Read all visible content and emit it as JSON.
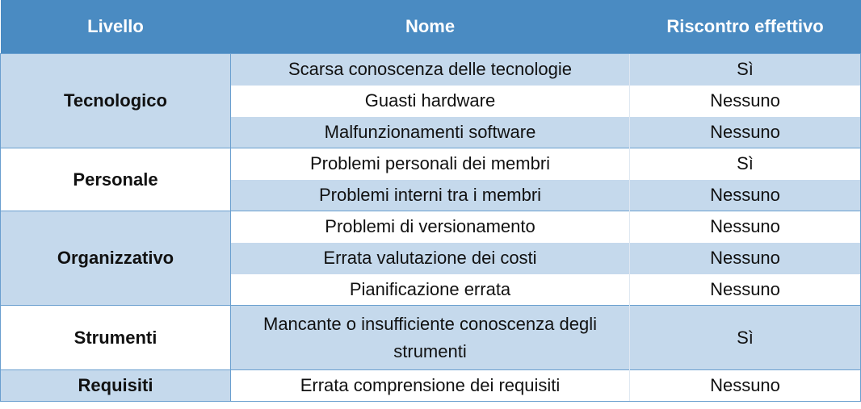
{
  "headers": {
    "level": "Livello",
    "name": "Nome",
    "result": "Riscontro effettivo"
  },
  "groups": [
    {
      "level": "Tecnologico",
      "rows": [
        {
          "name": "Scarsa conoscenza delle tecnologie",
          "result": "Sì"
        },
        {
          "name": "Guasti hardware",
          "result": "Nessuno"
        },
        {
          "name": "Malfunzionamenti software",
          "result": "Nessuno"
        }
      ]
    },
    {
      "level": "Personale",
      "rows": [
        {
          "name": "Problemi personali dei membri",
          "result": "Sì"
        },
        {
          "name": "Problemi interni tra i membri",
          "result": "Nessuno"
        }
      ]
    },
    {
      "level": "Organizzativo",
      "rows": [
        {
          "name": "Problemi di versionamento",
          "result": "Nessuno"
        },
        {
          "name": "Errata valutazione dei costi",
          "result": "Nessuno"
        },
        {
          "name": "Pianificazione errata",
          "result": "Nessuno"
        }
      ]
    },
    {
      "level": "Strumenti",
      "rows": [
        {
          "name": "Mancante o insufficiente conoscenza degli strumenti",
          "result": "Sì"
        }
      ]
    },
    {
      "level": "Requisiti",
      "rows": [
        {
          "name": "Errata comprensione dei requisiti",
          "result": "Nessuno"
        }
      ]
    }
  ]
}
